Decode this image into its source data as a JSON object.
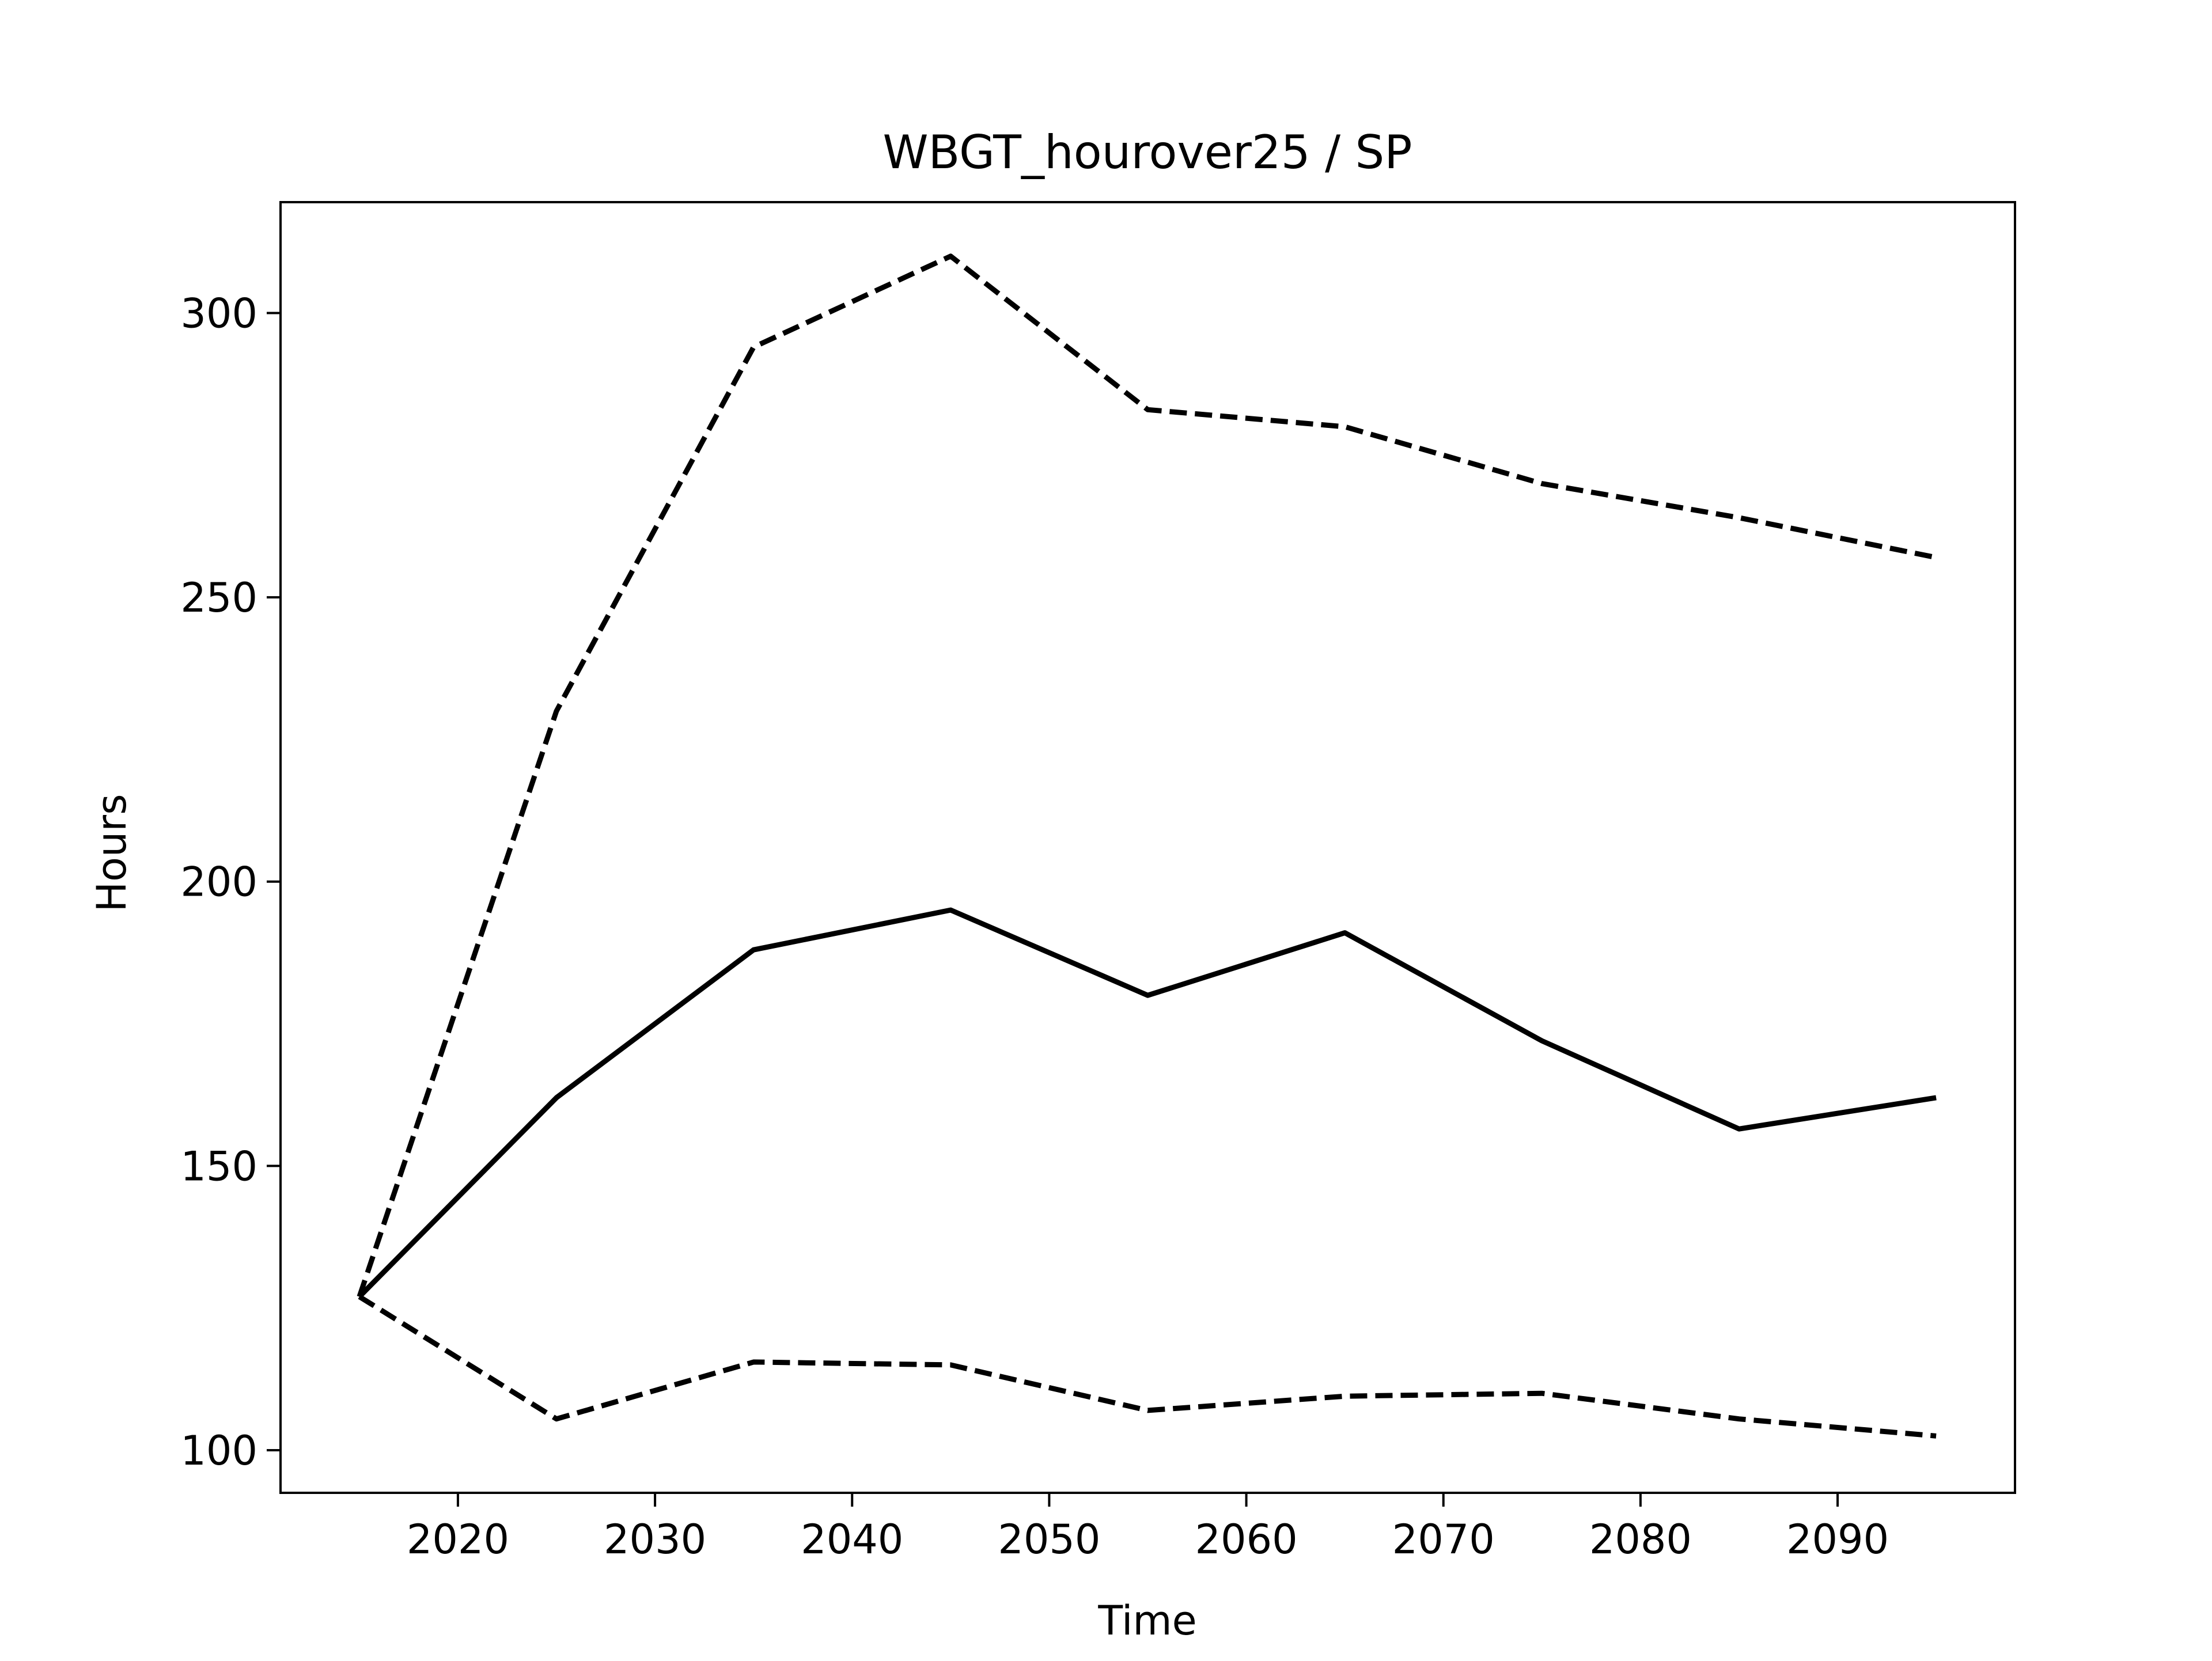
{
  "chart_data": {
    "type": "line",
    "title": "WBGT_hourover25 / SP",
    "xlabel": "Time",
    "ylabel": "Hours",
    "x": [
      2015,
      2025,
      2035,
      2045,
      2055,
      2065,
      2075,
      2085,
      2095
    ],
    "xlim": [
      2011,
      2099
    ],
    "ylim": [
      92.5,
      319.5
    ],
    "xticks": [
      2020,
      2030,
      2040,
      2050,
      2060,
      2070,
      2080,
      2090
    ],
    "yticks": [
      100,
      150,
      200,
      250,
      300
    ],
    "grid": false,
    "legend": "none",
    "series": [
      {
        "style": "solid",
        "color": "#000000",
        "values": [
          127,
          162,
          188,
          195,
          180,
          191,
          172,
          156.5,
          162
        ]
      },
      {
        "style": "dashed",
        "color": "#000000",
        "values": [
          127,
          230,
          294,
          310,
          283,
          280,
          270,
          264,
          257
        ]
      },
      {
        "style": "dashed",
        "color": "#000000",
        "values": [
          127,
          105.5,
          115.5,
          115,
          107,
          109.5,
          110,
          105.5,
          102.5
        ]
      }
    ]
  }
}
